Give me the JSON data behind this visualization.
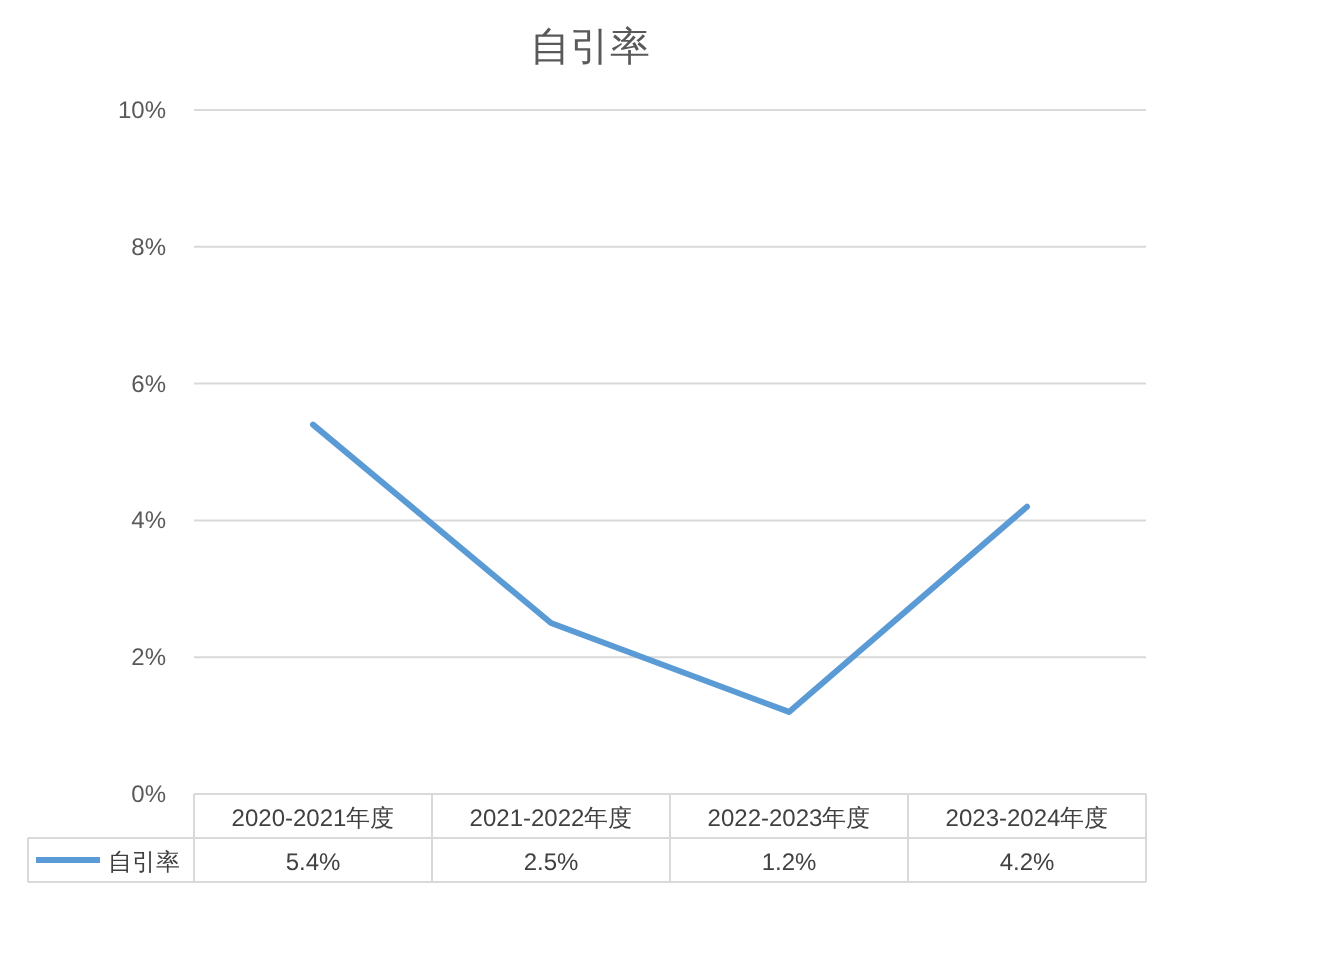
{
  "chart_data": {
    "type": "line",
    "title": "自引率",
    "categories": [
      "2020-2021年度",
      "2021-2022年度",
      "2022-2023年度",
      "2023-2024年度"
    ],
    "series": [
      {
        "name": "自引率",
        "color": "#5b9bd5",
        "values": [
          5.4,
          2.5,
          1.2,
          4.2
        ],
        "value_labels": [
          "5.4%",
          "2.5%",
          "1.2%",
          "4.2%"
        ]
      }
    ],
    "ylim": [
      0,
      10
    ],
    "yticks": [
      {
        "value": 0,
        "label": "0%"
      },
      {
        "value": 2,
        "label": "2%"
      },
      {
        "value": 4,
        "label": "4%"
      },
      {
        "value": 6,
        "label": "6%"
      },
      {
        "value": 8,
        "label": "8%"
      },
      {
        "value": 10,
        "label": "10%"
      }
    ],
    "grid": "y",
    "legend": "bottom left",
    "marker": "none",
    "line_style": "solid"
  }
}
